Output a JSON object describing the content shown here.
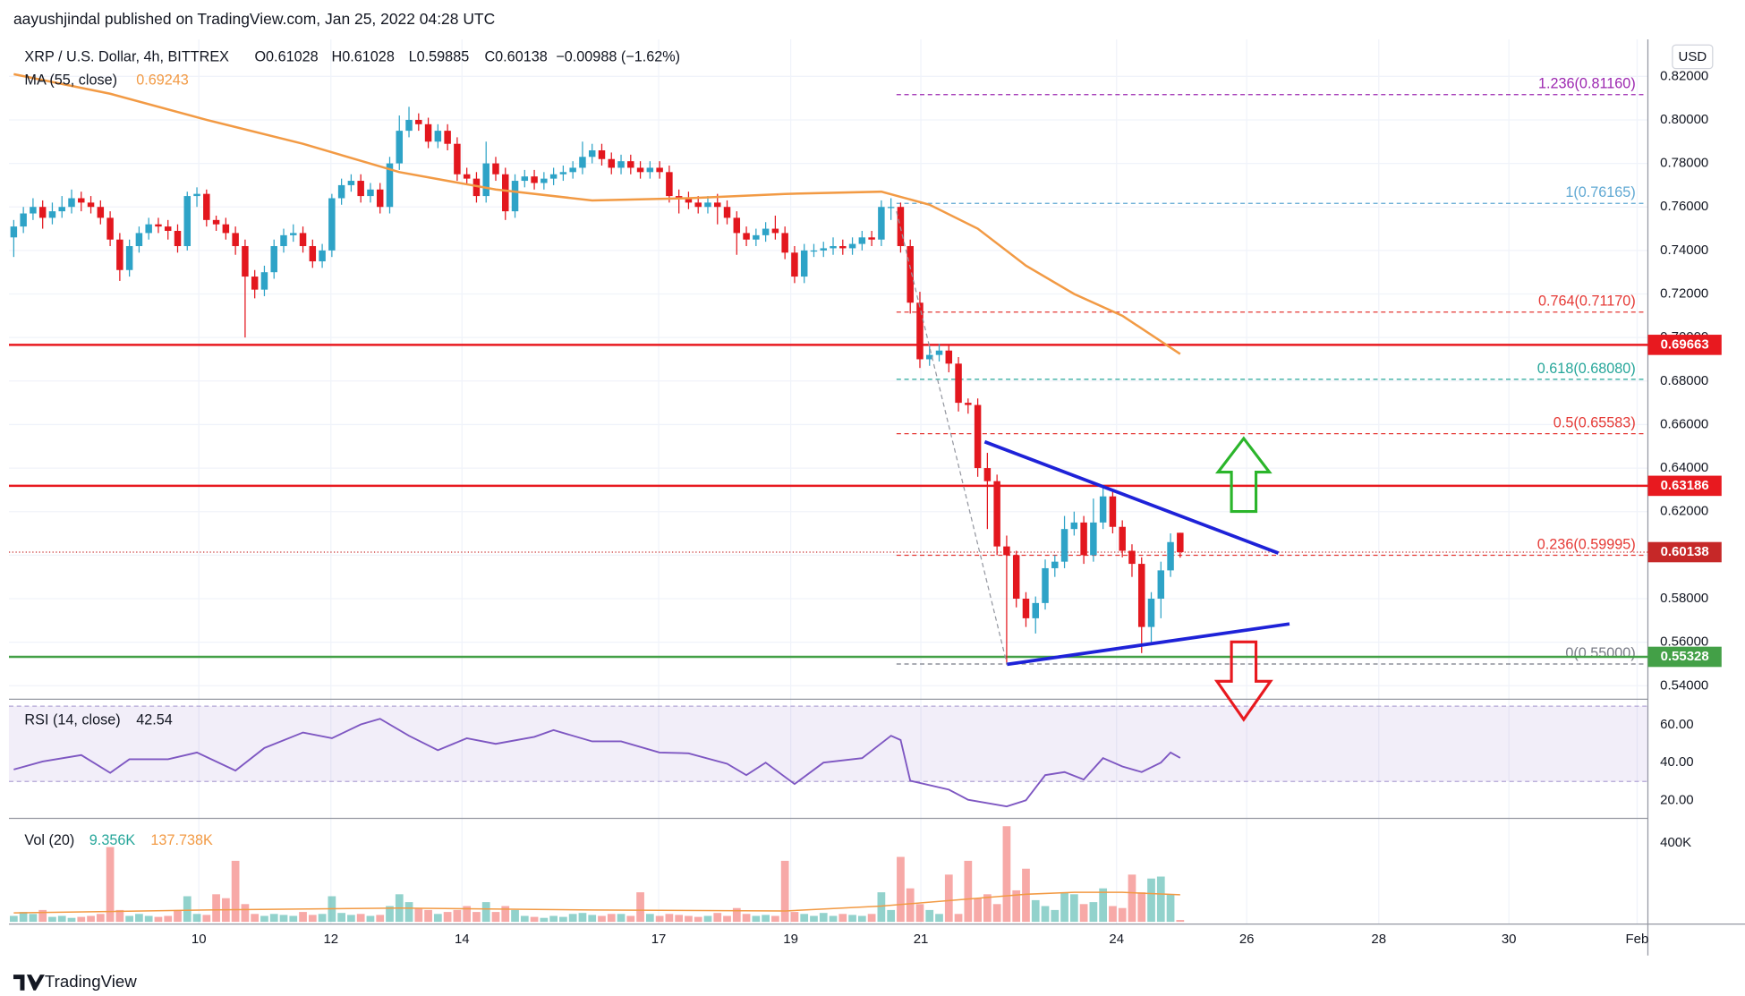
{
  "header": {
    "publisher": "aayushjindal published on TradingView.com, Jan 25, 2022 04:28 UTC"
  },
  "footer": {
    "brand": "TradingView"
  },
  "chart_data": [
    {
      "type": "candlestick",
      "title": "XRP / U.S. Dollar, 4h, BITTREX",
      "ohlc_labels": [
        "O0.61028",
        "H0.61028",
        "L0.59885",
        "C0.60138"
      ],
      "change": "−0.00988 (−1.62%)",
      "currency": "USD",
      "up_color": "#2ea3c7",
      "down_color": "#e3171e",
      "grid": true,
      "candles": [
        [
          0.746,
          0.754,
          0.737,
          0.751
        ],
        [
          0.751,
          0.76,
          0.748,
          0.757
        ],
        [
          0.757,
          0.764,
          0.754,
          0.76
        ],
        [
          0.76,
          0.763,
          0.75,
          0.755
        ],
        [
          0.755,
          0.762,
          0.752,
          0.758
        ],
        [
          0.758,
          0.765,
          0.755,
          0.76
        ],
        [
          0.76,
          0.768,
          0.757,
          0.764
        ],
        [
          0.764,
          0.767,
          0.758,
          0.762
        ],
        [
          0.762,
          0.765,
          0.757,
          0.76
        ],
        [
          0.76,
          0.763,
          0.752,
          0.755
        ],
        [
          0.755,
          0.758,
          0.742,
          0.745
        ],
        [
          0.745,
          0.748,
          0.726,
          0.731
        ],
        [
          0.731,
          0.745,
          0.728,
          0.742
        ],
        [
          0.742,
          0.751,
          0.739,
          0.748
        ],
        [
          0.748,
          0.755,
          0.745,
          0.752
        ],
        [
          0.752,
          0.755,
          0.748,
          0.751
        ],
        [
          0.751,
          0.754,
          0.745,
          0.749
        ],
        [
          0.749,
          0.752,
          0.739,
          0.742
        ],
        [
          0.742,
          0.767,
          0.74,
          0.765
        ],
        [
          0.765,
          0.769,
          0.76,
          0.766
        ],
        [
          0.766,
          0.768,
          0.751,
          0.754
        ],
        [
          0.754,
          0.756,
          0.749,
          0.752
        ],
        [
          0.752,
          0.755,
          0.745,
          0.748
        ],
        [
          0.748,
          0.751,
          0.738,
          0.742
        ],
        [
          0.742,
          0.745,
          0.7,
          0.728
        ],
        [
          0.728,
          0.731,
          0.718,
          0.722
        ],
        [
          0.722,
          0.733,
          0.719,
          0.73
        ],
        [
          0.73,
          0.745,
          0.727,
          0.742
        ],
        [
          0.742,
          0.75,
          0.739,
          0.747
        ],
        [
          0.747,
          0.752,
          0.744,
          0.748
        ],
        [
          0.748,
          0.751,
          0.739,
          0.742
        ],
        [
          0.742,
          0.745,
          0.732,
          0.735
        ],
        [
          0.735,
          0.743,
          0.732,
          0.74
        ],
        [
          0.74,
          0.766,
          0.737,
          0.764
        ],
        [
          0.764,
          0.773,
          0.761,
          0.77
        ],
        [
          0.77,
          0.775,
          0.767,
          0.772
        ],
        [
          0.772,
          0.775,
          0.762,
          0.765
        ],
        [
          0.765,
          0.771,
          0.762,
          0.768
        ],
        [
          0.768,
          0.771,
          0.757,
          0.76
        ],
        [
          0.76,
          0.783,
          0.757,
          0.78
        ],
        [
          0.78,
          0.802,
          0.777,
          0.795
        ],
        [
          0.795,
          0.806,
          0.792,
          0.8
        ],
        [
          0.8,
          0.803,
          0.795,
          0.798
        ],
        [
          0.798,
          0.801,
          0.787,
          0.79
        ],
        [
          0.79,
          0.798,
          0.787,
          0.795
        ],
        [
          0.795,
          0.798,
          0.786,
          0.789
        ],
        [
          0.789,
          0.792,
          0.772,
          0.775
        ],
        [
          0.775,
          0.778,
          0.77,
          0.773
        ],
        [
          0.773,
          0.776,
          0.762,
          0.765
        ],
        [
          0.765,
          0.79,
          0.762,
          0.78
        ],
        [
          0.78,
          0.783,
          0.772,
          0.775
        ],
        [
          0.775,
          0.778,
          0.754,
          0.758
        ],
        [
          0.758,
          0.775,
          0.755,
          0.772
        ],
        [
          0.772,
          0.777,
          0.769,
          0.774
        ],
        [
          0.774,
          0.777,
          0.768,
          0.771
        ],
        [
          0.771,
          0.776,
          0.768,
          0.773
        ],
        [
          0.773,
          0.778,
          0.77,
          0.775
        ],
        [
          0.775,
          0.779,
          0.772,
          0.776
        ],
        [
          0.776,
          0.781,
          0.773,
          0.778
        ],
        [
          0.778,
          0.79,
          0.775,
          0.783
        ],
        [
          0.783,
          0.789,
          0.78,
          0.786
        ],
        [
          0.786,
          0.789,
          0.779,
          0.782
        ],
        [
          0.782,
          0.785,
          0.775,
          0.778
        ],
        [
          0.778,
          0.784,
          0.775,
          0.781
        ],
        [
          0.781,
          0.784,
          0.775,
          0.778
        ],
        [
          0.778,
          0.781,
          0.773,
          0.776
        ],
        [
          0.776,
          0.781,
          0.773,
          0.778
        ],
        [
          0.778,
          0.781,
          0.773,
          0.776
        ],
        [
          0.776,
          0.779,
          0.762,
          0.765
        ],
        [
          0.765,
          0.768,
          0.757,
          0.764
        ],
        [
          0.764,
          0.767,
          0.759,
          0.762
        ],
        [
          0.762,
          0.765,
          0.757,
          0.76
        ],
        [
          0.76,
          0.765,
          0.757,
          0.762
        ],
        [
          0.762,
          0.766,
          0.752,
          0.76
        ],
        [
          0.76,
          0.763,
          0.752,
          0.755
        ],
        [
          0.755,
          0.758,
          0.738,
          0.748
        ],
        [
          0.748,
          0.751,
          0.742,
          0.745
        ],
        [
          0.745,
          0.75,
          0.742,
          0.747
        ],
        [
          0.747,
          0.753,
          0.744,
          0.75
        ],
        [
          0.75,
          0.756,
          0.745,
          0.748
        ],
        [
          0.748,
          0.751,
          0.736,
          0.739
        ],
        [
          0.739,
          0.742,
          0.725,
          0.728
        ],
        [
          0.728,
          0.743,
          0.725,
          0.74
        ],
        [
          0.74,
          0.743,
          0.737,
          0.74
        ],
        [
          0.74,
          0.744,
          0.737,
          0.741
        ],
        [
          0.741,
          0.746,
          0.738,
          0.742
        ],
        [
          0.742,
          0.745,
          0.738,
          0.741
        ],
        [
          0.741,
          0.746,
          0.738,
          0.743
        ],
        [
          0.743,
          0.749,
          0.74,
          0.746
        ],
        [
          0.746,
          0.749,
          0.742,
          0.745
        ],
        [
          0.745,
          0.763,
          0.742,
          0.76
        ],
        [
          0.76,
          0.764,
          0.754,
          0.76
        ],
        [
          0.76,
          0.762,
          0.739,
          0.742
        ],
        [
          0.742,
          0.745,
          0.711,
          0.716
        ],
        [
          0.716,
          0.721,
          0.686,
          0.69
        ],
        [
          0.69,
          0.696,
          0.687,
          0.692
        ],
        [
          0.692,
          0.697,
          0.689,
          0.694
        ],
        [
          0.694,
          0.697,
          0.684,
          0.688
        ],
        [
          0.688,
          0.691,
          0.666,
          0.67
        ],
        [
          0.67,
          0.672,
          0.665,
          0.669
        ],
        [
          0.669,
          0.672,
          0.636,
          0.64
        ],
        [
          0.64,
          0.647,
          0.612,
          0.634
        ],
        [
          0.634,
          0.637,
          0.6,
          0.604
        ],
        [
          0.604,
          0.609,
          0.55,
          0.6
        ],
        [
          0.6,
          0.602,
          0.576,
          0.58
        ],
        [
          0.58,
          0.583,
          0.567,
          0.571
        ],
        [
          0.571,
          0.581,
          0.564,
          0.578
        ],
        [
          0.578,
          0.598,
          0.575,
          0.594
        ],
        [
          0.594,
          0.6,
          0.59,
          0.597
        ],
        [
          0.597,
          0.618,
          0.594,
          0.612
        ],
        [
          0.612,
          0.62,
          0.609,
          0.615
        ],
        [
          0.615,
          0.618,
          0.596,
          0.6
        ],
        [
          0.6,
          0.626,
          0.597,
          0.615
        ],
        [
          0.615,
          0.632,
          0.612,
          0.627
        ],
        [
          0.627,
          0.63,
          0.61,
          0.613
        ],
        [
          0.613,
          0.616,
          0.599,
          0.602
        ],
        [
          0.602,
          0.605,
          0.59,
          0.596
        ],
        [
          0.596,
          0.599,
          0.555,
          0.567
        ],
        [
          0.567,
          0.583,
          0.56,
          0.58
        ],
        [
          0.58,
          0.597,
          0.571,
          0.593
        ],
        [
          0.593,
          0.61,
          0.59,
          0.606
        ],
        [
          0.61028,
          0.61028,
          0.59885,
          0.60138
        ]
      ],
      "xlim": [
        -0.5,
        169.4
      ],
      "xticks": [
        {
          "value": 19.2,
          "label": "10"
        },
        {
          "value": 32.9,
          "label": "12"
        },
        {
          "value": 46.5,
          "label": "14"
        },
        {
          "value": 66.9,
          "label": "17"
        },
        {
          "value": 80.6,
          "label": "19"
        },
        {
          "value": 94.1,
          "label": "21"
        },
        {
          "value": 114.4,
          "label": "24"
        },
        {
          "value": 127.9,
          "label": "26"
        },
        {
          "value": 141.6,
          "label": "28"
        },
        {
          "value": 155.1,
          "label": "30"
        },
        {
          "value": 168.4,
          "label": "Feb"
        }
      ],
      "ylim": [
        0.5338,
        0.837
      ],
      "yticks": [
        {
          "value": 0.82,
          "label": "0.82000"
        },
        {
          "value": 0.8,
          "label": "0.80000"
        },
        {
          "value": 0.78,
          "label": "0.78000"
        },
        {
          "value": 0.76,
          "label": "0.76000"
        },
        {
          "value": 0.74,
          "label": "0.74000"
        },
        {
          "value": 0.72,
          "label": "0.72000"
        },
        {
          "value": 0.7,
          "label": "0.70000"
        },
        {
          "value": 0.68,
          "label": "0.68000"
        },
        {
          "value": 0.66,
          "label": "0.66000"
        },
        {
          "value": 0.64,
          "label": "0.64000"
        },
        {
          "value": 0.62,
          "label": "0.62000"
        },
        {
          "value": 0.6,
          "label": "0.60000"
        },
        {
          "value": 0.58,
          "label": "0.58000"
        },
        {
          "value": 0.56,
          "label": "0.56000"
        },
        {
          "value": 0.54,
          "label": "0.54000"
        }
      ],
      "moving_average": {
        "name": "MA (55, close)",
        "color": "#f29a44",
        "x": [
          0,
          10,
          20,
          30,
          40,
          50,
          60,
          70,
          80,
          90,
          95,
          100,
          105,
          110,
          115,
          121
        ],
        "values": [
          0.821,
          0.812,
          0.8,
          0.789,
          0.776,
          0.768,
          0.763,
          0.764,
          0.766,
          0.767,
          0.761,
          0.75,
          0.733,
          0.72,
          0.71,
          0.69243
        ]
      },
      "levels": [
        {
          "value": 0.69663,
          "color": "#e8191f"
        },
        {
          "value": 0.63186,
          "color": "#e8191f"
        },
        {
          "value": 0.55328,
          "color": "#43a047"
        }
      ],
      "last_price": {
        "value": 0.60138,
        "color": "#c62828"
      },
      "fibonacci": [
        {
          "label": "1.236(0.81160)",
          "value": 0.8116,
          "color": "#9c27b0"
        },
        {
          "label": "1(0.76165)",
          "value": 0.76165,
          "color": "#5fa8d3"
        },
        {
          "label": "0.764(0.71170)",
          "value": 0.7117,
          "color": "#e53935"
        },
        {
          "label": "0.618(0.68080)",
          "value": 0.6808,
          "color": "#26a69a"
        },
        {
          "label": "0.5(0.65583)",
          "value": 0.65583,
          "color": "#e53935"
        },
        {
          "label": "0.236(0.59995)",
          "value": 0.59995,
          "color": "#e53935"
        },
        {
          "label": "0(0.55000)",
          "value": 0.55,
          "color": "#787b86"
        }
      ]
    },
    {
      "type": "line",
      "title": "RSI (14, close)",
      "color": "#7e57c2",
      "band": [
        30,
        70
      ],
      "x": [
        0,
        3,
        7,
        10,
        12,
        16,
        19,
        23,
        26,
        30,
        33,
        36,
        38,
        41,
        44,
        47,
        50,
        54,
        56,
        60,
        63,
        67,
        70,
        74,
        76,
        78,
        81,
        84,
        88,
        91,
        92,
        93,
        97,
        99,
        103,
        105,
        107,
        109,
        111,
        113,
        115,
        117,
        119,
        120,
        121
      ],
      "values": [
        36.4,
        40.6,
        44,
        34.6,
        41.8,
        41.8,
        45.4,
        35.8,
        47.8,
        56,
        53,
        60.3,
        63.3,
        54.3,
        46.6,
        53,
        50,
        53.7,
        57.3,
        51.3,
        51.3,
        45.4,
        45,
        39.4,
        33.4,
        40,
        28.7,
        40,
        42.4,
        54.3,
        52,
        30.4,
        25.7,
        20.3,
        16.7,
        20,
        33.4,
        35,
        31,
        42.4,
        38,
        35,
        40,
        45.4,
        42.54
      ],
      "xlim": [
        -0.5,
        169.4
      ],
      "ylim": [
        10.4,
        71.9
      ],
      "yticks": [
        {
          "value": 60,
          "label": "60.00"
        },
        {
          "value": 40,
          "label": "40.00"
        },
        {
          "value": 20,
          "label": "20.00"
        }
      ]
    },
    {
      "type": "bar",
      "title": "Vol (20)",
      "legend_values": [
        "9.356K",
        "137.738K"
      ],
      "up_color": "rgba(38,166,154,0.5)",
      "down_color": "rgba(239,83,80,0.5)",
      "values": [
        30,
        50,
        40,
        60,
        25,
        30,
        20,
        25,
        30,
        40,
        380,
        60,
        30,
        40,
        30,
        25,
        30,
        60,
        130,
        40,
        35,
        140,
        120,
        310,
        90,
        40,
        30,
        40,
        35,
        30,
        50,
        35,
        40,
        130,
        45,
        35,
        40,
        30,
        35,
        80,
        140,
        100,
        70,
        60,
        40,
        50,
        60,
        80,
        50,
        100,
        50,
        80,
        60,
        30,
        25,
        20,
        30,
        25,
        40,
        45,
        35,
        30,
        40,
        40,
        30,
        150,
        40,
        30,
        40,
        35,
        30,
        25,
        30,
        45,
        30,
        70,
        40,
        30,
        35,
        30,
        310,
        50,
        40,
        30,
        45,
        30,
        40,
        35,
        30,
        40,
        150,
        60,
        330,
        170,
        90,
        60,
        40,
        240,
        40,
        310,
        120,
        140,
        90,
        486,
        160,
        270,
        110,
        80,
        60,
        150,
        140,
        90,
        100,
        170,
        80,
        70,
        240,
        150,
        220,
        230,
        140,
        9.356
      ],
      "xlim": [
        -0.5,
        169.4
      ],
      "ylim": [
        0,
        514.3
      ],
      "yticks": [
        {
          "value": 400,
          "label": "400K"
        }
      ],
      "moving_average": {
        "color": "#f29a44",
        "x": [
          0,
          20,
          40,
          60,
          80,
          90,
          100,
          105,
          110,
          115,
          121
        ],
        "values": [
          45,
          60,
          70,
          60,
          55,
          80,
          120,
          140,
          150,
          150,
          137.738
        ]
      }
    }
  ]
}
